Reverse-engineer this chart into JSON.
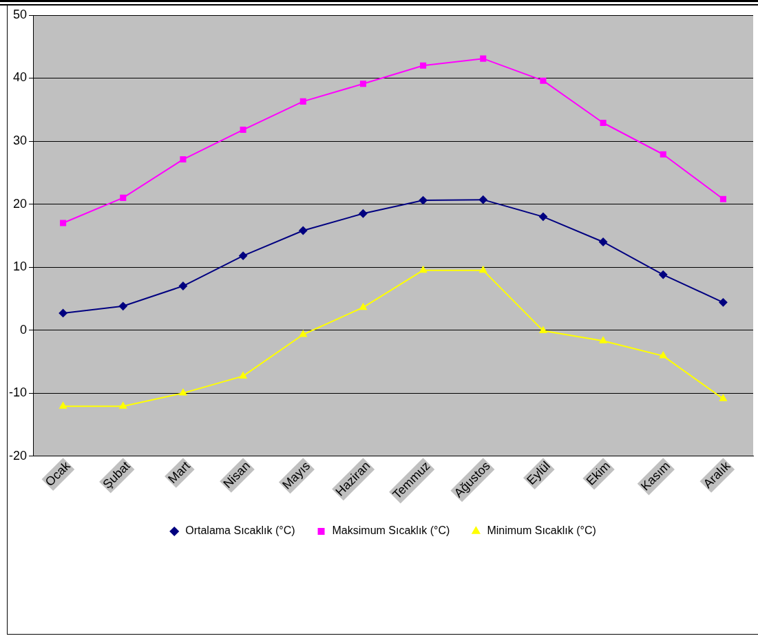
{
  "chart_data": {
    "type": "line",
    "categories": [
      "Ocak",
      "Şubat",
      "Mart",
      "Nisan",
      "Mayıs",
      "Haziran",
      "Temmuz",
      "Ağustos",
      "Eylül",
      "Ekim",
      "Kasım",
      "Aralık"
    ],
    "series": [
      {
        "name": "Ortalama Sıcaklık (°C)",
        "color": "#000080",
        "marker": "diamond",
        "values": [
          2.7,
          3.8,
          7.0,
          11.8,
          15.8,
          18.5,
          20.6,
          20.7,
          18.0,
          14.0,
          8.8,
          4.4
        ]
      },
      {
        "name": "Maksimum Sıcaklık (°C)",
        "color": "#ff00ff",
        "marker": "square",
        "values": [
          17.0,
          21.0,
          27.1,
          31.8,
          36.3,
          39.1,
          42.0,
          43.1,
          39.6,
          32.9,
          27.9,
          20.8
        ]
      },
      {
        "name": "Minimum Sıcaklık (°C)",
        "color": "#ffff00",
        "marker": "triangle",
        "values": [
          -12.1,
          -12.1,
          -10.0,
          -7.3,
          -0.7,
          3.6,
          9.5,
          9.5,
          -0.1,
          -1.7,
          -4.1,
          -10.9
        ]
      }
    ],
    "ylim": [
      -20,
      50
    ],
    "yticks": [
      -20,
      -10,
      0,
      10,
      20,
      30,
      40,
      50
    ],
    "grid": "y",
    "legend": "bottom"
  }
}
